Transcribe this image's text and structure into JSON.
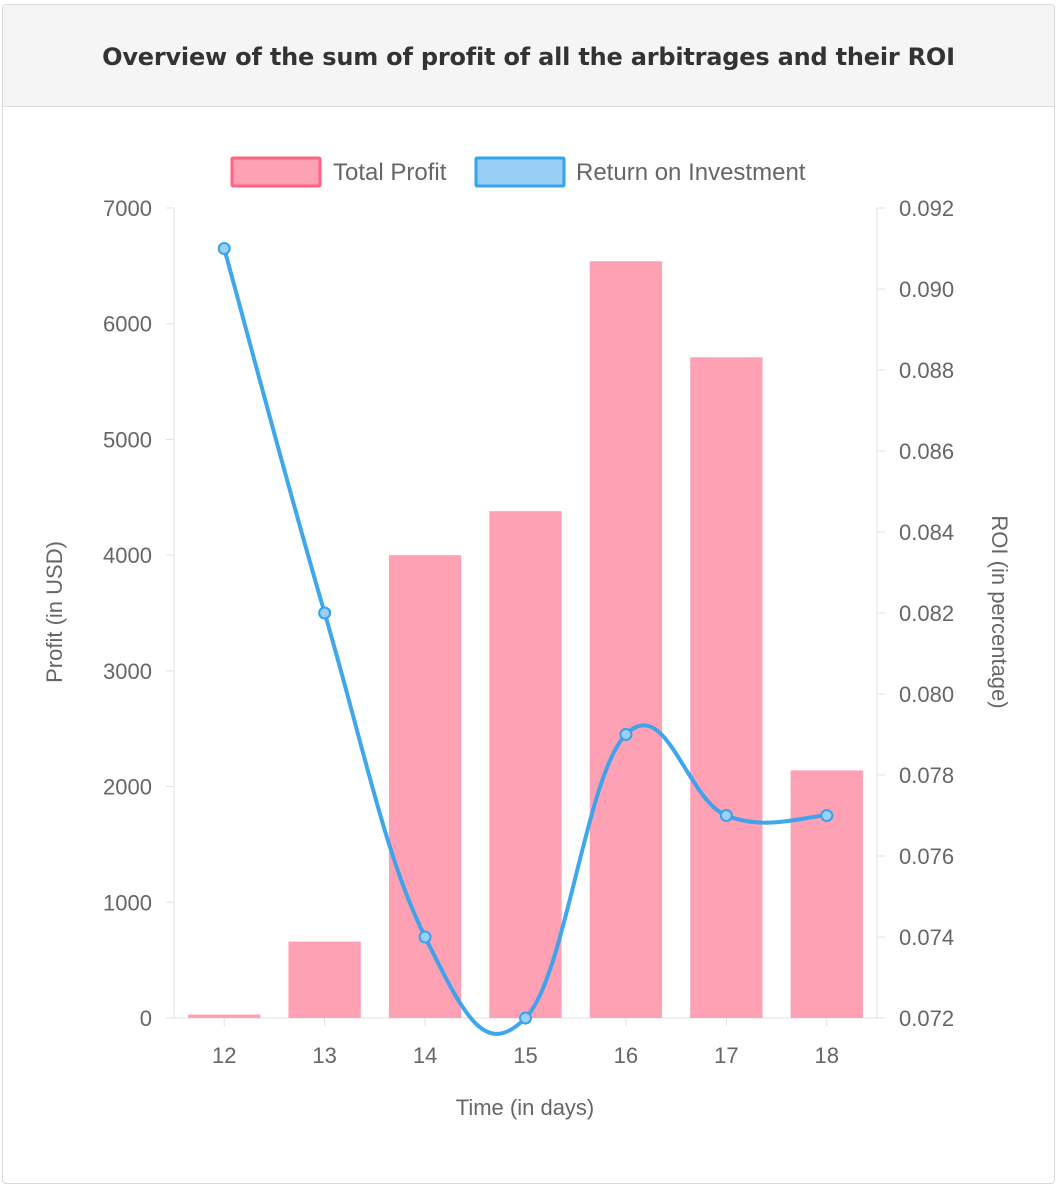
{
  "card": {
    "title": "Overview of the sum of profit of all the arbitrages and their ROI"
  },
  "colors": {
    "bar_fill": "#ffa1b5",
    "bar_border": "#ff6384",
    "line": "#36a2eb",
    "line_fill": "#9ad0f5",
    "grid": "#e6e6e6",
    "tick": "#666666"
  },
  "chart_data": {
    "type": "bar",
    "categories": [
      "12",
      "13",
      "14",
      "15",
      "16",
      "17",
      "18"
    ],
    "series": [
      {
        "name": "Total Profit",
        "type": "bar",
        "axis": "left",
        "values": [
          30,
          660,
          4000,
          4380,
          6540,
          5710,
          2140
        ]
      },
      {
        "name": "Return on Investment",
        "type": "line",
        "axis": "right",
        "smooth": true,
        "values": [
          0.091,
          0.082,
          0.074,
          0.072,
          0.079,
          0.077,
          0.077
        ]
      }
    ],
    "xlabel": "Time (in days)",
    "ylabel": "Profit (in USD)",
    "y2label": "ROI (in percentage)",
    "ylim": [
      0,
      7000
    ],
    "y2lim": [
      0.072,
      0.092
    ],
    "yticks": [
      "0",
      "1000",
      "2000",
      "3000",
      "4000",
      "5000",
      "6000",
      "7000"
    ],
    "y2ticks": [
      "0.072",
      "0.074",
      "0.076",
      "0.078",
      "0.080",
      "0.082",
      "0.084",
      "0.086",
      "0.088",
      "0.090",
      "0.092"
    ],
    "legend": "top",
    "grid": false
  }
}
